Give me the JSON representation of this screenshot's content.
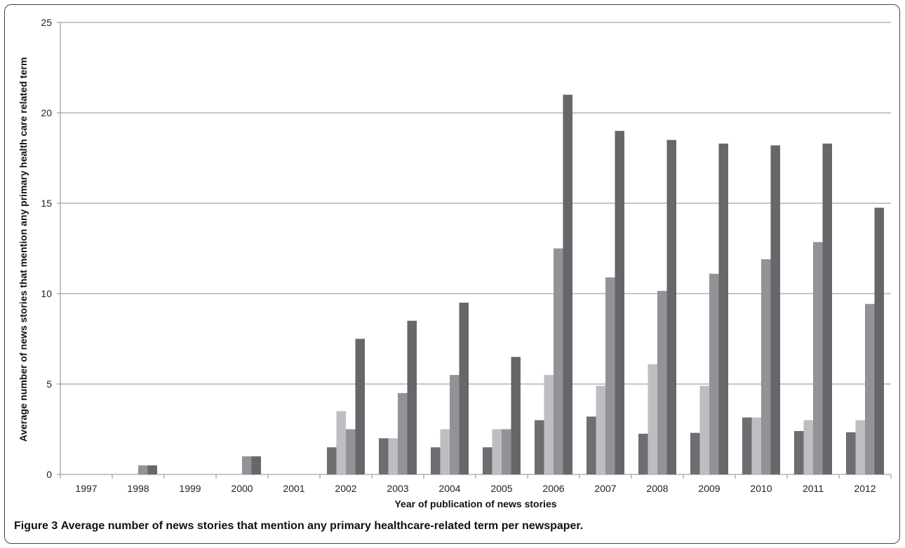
{
  "chart_data": {
    "type": "bar",
    "title": "",
    "xlabel": "Year of publication of  news stories",
    "ylabel": "Average number of news stories that mention any primary health care related term",
    "ylim": [
      0,
      25
    ],
    "yticks": [
      0,
      5,
      10,
      15,
      20,
      25
    ],
    "grid": true,
    "categories": [
      "1997",
      "1998",
      "1999",
      "2000",
      "2001",
      "2002",
      "2003",
      "2004",
      "2005",
      "2006",
      "2007",
      "2008",
      "2009",
      "2010",
      "2011",
      "2012"
    ],
    "series": [
      {
        "color": "#6d6d72",
        "values": [
          0,
          0,
          0,
          0,
          0,
          1.5,
          2.0,
          1.5,
          1.5,
          3.0,
          3.2,
          2.25,
          2.3,
          3.15,
          2.4,
          2.33
        ]
      },
      {
        "color": "#bdbec2",
        "values": [
          0,
          0,
          0,
          0,
          0,
          3.5,
          2.0,
          2.5,
          2.5,
          5.5,
          4.9,
          6.1,
          4.9,
          3.15,
          3.0,
          3.0
        ]
      },
      {
        "color": "#929297",
        "values": [
          0,
          0.5,
          0,
          1.0,
          0,
          2.5,
          4.5,
          5.5,
          2.5,
          12.5,
          10.9,
          10.15,
          11.1,
          11.9,
          12.85,
          9.43
        ]
      },
      {
        "color": "#67676b",
        "values": [
          0,
          0.5,
          0,
          1.0,
          0,
          7.5,
          8.5,
          9.5,
          6.5,
          21.0,
          19.0,
          18.5,
          18.3,
          18.2,
          18.3,
          14.75
        ]
      }
    ]
  },
  "caption": {
    "label": "Figure 3",
    "text": "Average number of news stories that mention any primary healthcare-related term per newspaper."
  }
}
